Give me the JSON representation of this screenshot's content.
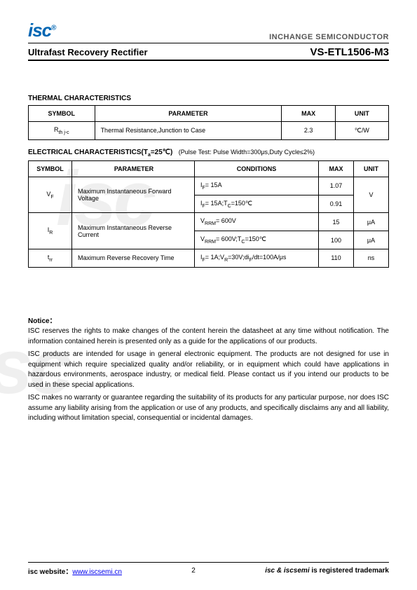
{
  "header": {
    "logo_main": "isc",
    "logo_reg": "®",
    "company": "INCHANGE SEMICONDUCTOR",
    "title_left": "Ultrafast Recovery Rectifier",
    "title_right": "VS-ETL1506-M3"
  },
  "thermal": {
    "title": "THERMAL CHARACTERISTICS",
    "columns": {
      "symbol": "SYMBOL",
      "parameter": "PARAMETER",
      "max": "MAX",
      "unit": "UNIT"
    },
    "row": {
      "symbol_main": "R",
      "symbol_sub": "th j-c",
      "parameter": "Thermal Resistance,Junction to Case",
      "max": "2.3",
      "unit": "℃/W"
    }
  },
  "electrical": {
    "title": "ELECTRICAL CHARACTERISTICS(T",
    "title_sub": "a",
    "title_after": "=25℃)",
    "subtitle": "(Pulse Test: Pulse Width=300μs,Duty Cycle≤2%)",
    "columns": {
      "symbol": "SYMBOL",
      "parameter": "PARAMETER",
      "conditions": "CONDITIONS",
      "max": "MAX",
      "unit": "UNIT"
    },
    "rows": [
      {
        "symbol_main": "V",
        "symbol_sub": "F",
        "parameter": "Maximum Instantaneous Forward Voltage",
        "cond1": "IF= 15A",
        "max1": "1.07",
        "cond2": "IF= 15A;TC=150℃",
        "max2": "0.91",
        "unit": "V"
      },
      {
        "symbol_main": "I",
        "symbol_sub": "R",
        "parameter": "Maximum Instantaneous Reverse Current",
        "cond1": "VRRM= 600V",
        "max1": "15",
        "unit1": "μA",
        "cond2": "VRRM= 600V;TC=150℃",
        "max2": "100",
        "unit2": "μA"
      },
      {
        "symbol_main": "t",
        "symbol_sub": "rr",
        "parameter": "Maximum Reverse Recovery Time",
        "cond": "IF= 1A;VR=30V;diF/dt=100A/μs",
        "max": "110",
        "unit": "ns"
      }
    ]
  },
  "notice": {
    "title": "Notice：",
    "p1": "ISC reserves the rights to make changes of the content herein the datasheet at any time without notification. The information contained herein is presented only as a guide for the applications of our products.",
    "p2": "ISC products are intended for usage in general electronic equipment. The products are not designed for use in equipment which require specialized quality and/or reliability, or in equipment which could have applications in hazardous environments, aerospace industry, or medical field. Please contact us if you intend our products to be used in these special applications.",
    "p3": "ISC makes no warranty or guarantee regarding the suitability of its products for any particular purpose, nor does ISC assume any liability arising from the application or use of any products, and specifically disclaims any and all liability, including without limitation special, consequential or incidental damages."
  },
  "footer": {
    "left_label": "isc website：",
    "url": "www.iscsemi.cn",
    "page": "2",
    "right_prefix": "isc & iscsemi",
    "right_suffix": " is registered trademark"
  },
  "watermark": "isc"
}
